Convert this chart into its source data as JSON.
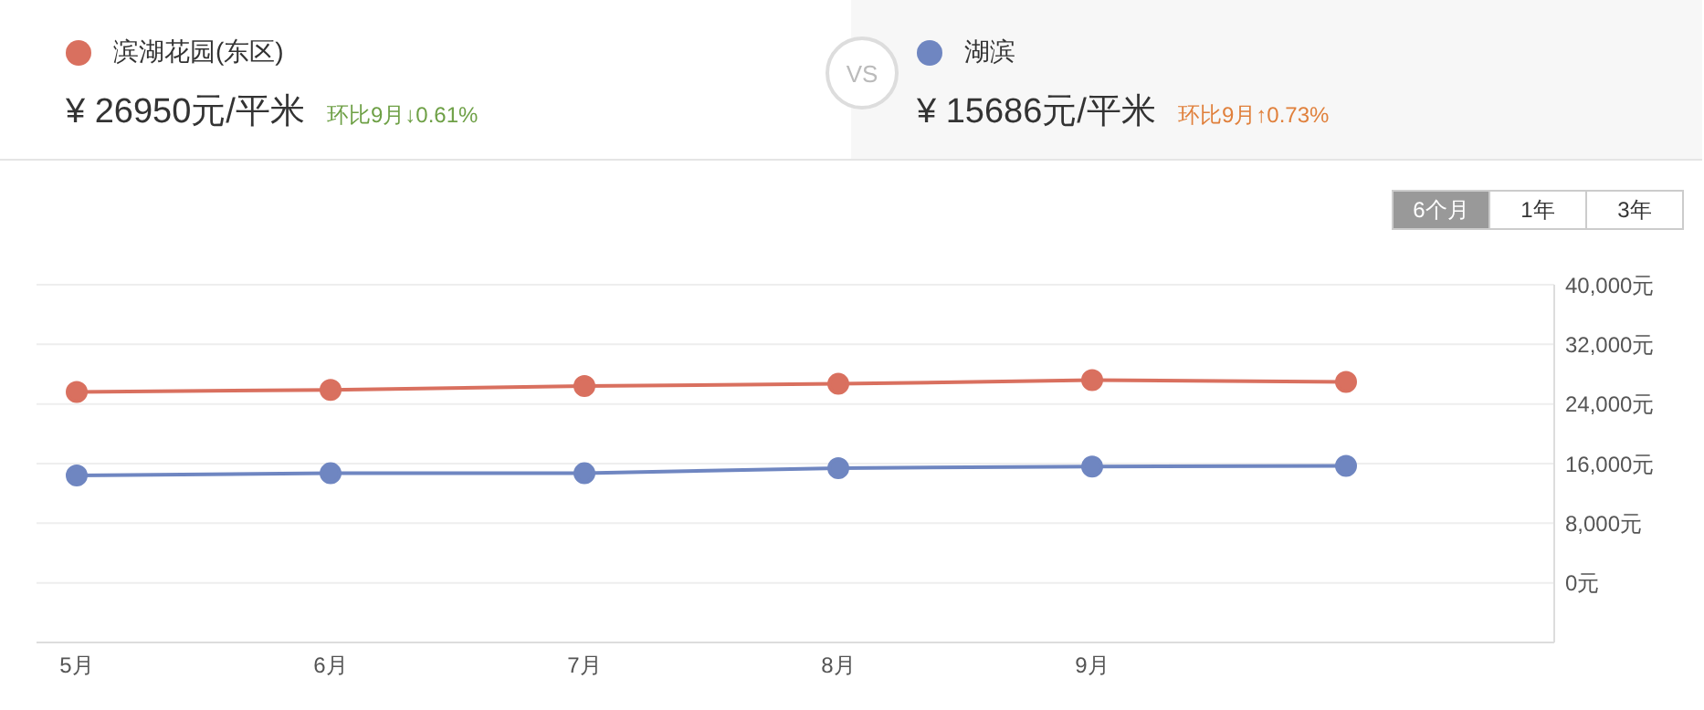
{
  "chart_data": {
    "type": "line",
    "categories": [
      "5月",
      "6月",
      "7月",
      "8月",
      "9月",
      null
    ],
    "series": [
      {
        "name": "滨湖花园(东区)",
        "color": "#d9705f",
        "values": [
          25600,
          25900,
          26400,
          26700,
          27200,
          26950
        ]
      },
      {
        "name": "湖滨",
        "color": "#6f86c1",
        "values": [
          14400,
          14700,
          14700,
          15400,
          15600,
          15686
        ]
      }
    ],
    "ylim": [
      -8000,
      40000
    ],
    "yticks": [
      {
        "value": 0,
        "label": "0元"
      },
      {
        "value": 8000,
        "label": "8,000元"
      },
      {
        "value": 16000,
        "label": "16,000元"
      },
      {
        "value": 24000,
        "label": "24,000元"
      },
      {
        "value": 32000,
        "label": "32,000元"
      },
      {
        "value": 40000,
        "label": "40,000元"
      }
    ],
    "grid": "y",
    "legend": "top",
    "marker": "circle",
    "line_style": "solid",
    "annotations": [
      "¥ 26950元/平米",
      "环比9月↓0.61%",
      "¥ 15686元/平米",
      "环比9月↑0.73%",
      "VS",
      "6个月",
      "1年",
      "3年"
    ]
  }
}
